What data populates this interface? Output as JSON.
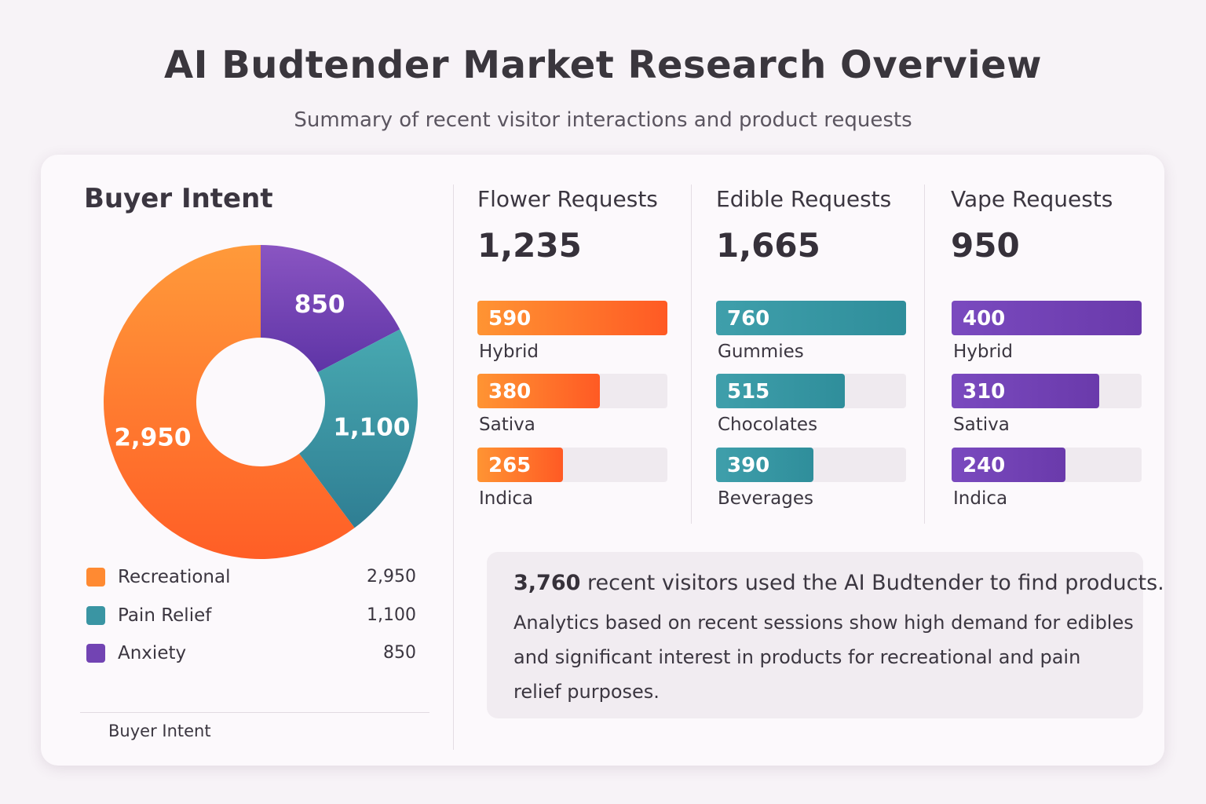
{
  "header": {
    "title": "AI Budtender Market Research Overview",
    "subtitle": "Summary of recent visitor interactions and product requests"
  },
  "buyer_intent": {
    "title": "Buyer Intent",
    "footer": "Buyer Intent",
    "legend": [
      {
        "label": "Recreational",
        "value": "2,950"
      },
      {
        "label": "Pain Relief",
        "value": "1,100"
      },
      {
        "label": "Anxiety",
        "value": "850"
      }
    ]
  },
  "requests": [
    {
      "title": "Flower Requests",
      "total": "1,235",
      "bars": [
        {
          "value": "590",
          "label": "Hybrid"
        },
        {
          "value": "380",
          "label": "Sativa"
        },
        {
          "value": "265",
          "label": "Indica"
        }
      ]
    },
    {
      "title": "Edible Requests",
      "total": "1,665",
      "bars": [
        {
          "value": "760",
          "label": "Gummies"
        },
        {
          "value": "515",
          "label": "Chocolates"
        },
        {
          "value": "390",
          "label": "Beverages"
        }
      ]
    },
    {
      "title": "Vape Requests",
      "total": "950",
      "bars": [
        {
          "value": "400",
          "label": "Hybrid"
        },
        {
          "value": "310",
          "label": "Sativa"
        },
        {
          "value": "240",
          "label": "Indica"
        }
      ]
    }
  ],
  "summary": {
    "highlight": "3,760",
    "headline": "recent visitors used the AI Budtender to find products.",
    "body": "Analytics based on recent sessions show high demand for edibles and significant interest in products for recreational and pain relief purposes."
  },
  "colors": {
    "recreational": "#ff7a2e",
    "pain_relief": "#3a95a3",
    "anxiety": "#7244b3"
  },
  "chart_data": [
    {
      "type": "pie",
      "title": "Buyer Intent",
      "categories": [
        "Recreational",
        "Pain Relief",
        "Anxiety"
      ],
      "values": [
        2950,
        1100,
        850
      ],
      "colors": [
        "#ff7a2e",
        "#3a95a3",
        "#7244b3"
      ],
      "donut": true
    },
    {
      "type": "bar",
      "title": "Flower Requests",
      "orientation": "horizontal",
      "categories": [
        "Hybrid",
        "Sativa",
        "Indica"
      ],
      "values": [
        590,
        380,
        265
      ],
      "xlim": [
        0,
        590
      ]
    },
    {
      "type": "bar",
      "title": "Edible Requests",
      "orientation": "horizontal",
      "categories": [
        "Gummies",
        "Chocolates",
        "Beverages"
      ],
      "values": [
        760,
        515,
        390
      ],
      "xlim": [
        0,
        760
      ]
    },
    {
      "type": "bar",
      "title": "Vape Requests",
      "orientation": "horizontal",
      "categories": [
        "Hybrid",
        "Sativa",
        "Indica"
      ],
      "values": [
        400,
        310,
        240
      ],
      "xlim": [
        0,
        400
      ]
    }
  ]
}
